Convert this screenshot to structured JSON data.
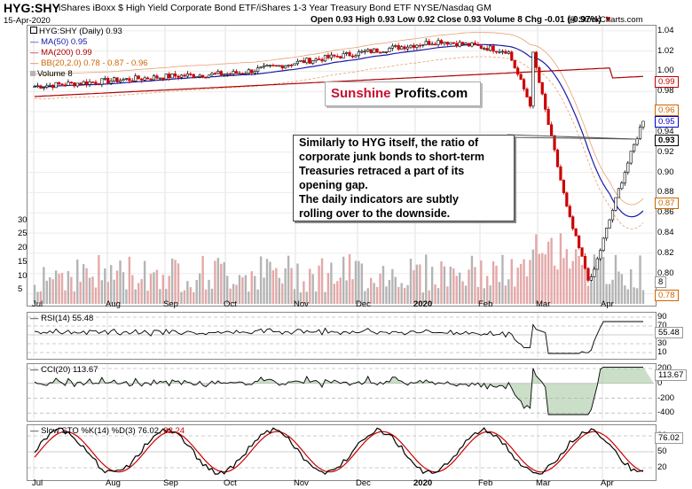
{
  "header": {
    "symbol": "HYG:SHY",
    "name": "iShares iBoxx $ High Yield Corporate Bond ETF/iShares 1-3 Year Treasury Bond ETF  NYSE/Nasdaq GM",
    "date": "15-Apr-2020",
    "copyright": "@ StockCharts.com",
    "ohlc": "Open 0.93  High 0.93  Low 0.92  Close 0.93  Volume 8  Chg -0.01 (-0.97%)",
    "chg_arrow": "▼"
  },
  "logo": {
    "part1": "Sunshine",
    "part2": "Profits.com"
  },
  "annotation": {
    "lines": [
      "Similarly to HYG itself, the ratio of",
      "corporate junk bonds to short-term",
      "Treasuries retraced a part of its",
      "opening gap.",
      "The daily indicators are subtly",
      "rolling over to the downside."
    ]
  },
  "price_legend": {
    "series": "HYG:SHY (Daily) 0.93",
    "ma50": "MA(50) 0.95",
    "ma200": "MA(200) 0.99",
    "bb": "BB(20,2.0) 0.78 - 0.87 - 0.96",
    "volume": "Volume 8"
  },
  "price_axis": {
    "ticks": [
      "1.04",
      "1.02",
      "1.00",
      "0.98",
      "0.96",
      "0.94",
      "0.92",
      "0.90",
      "0.88",
      "0.86",
      "0.84",
      "0.82",
      "0.80",
      "0.78"
    ],
    "tags": [
      {
        "text": "0.99",
        "value": 0.99,
        "color": "#c00000"
      },
      {
        "text": "0.96",
        "value": 0.962,
        "color": "#cc6600"
      },
      {
        "text": "0.95",
        "value": 0.95,
        "color": "#0000cc"
      },
      {
        "text": "0.93",
        "value": 0.932,
        "color": "#000000"
      },
      {
        "text": "0.87",
        "value": 0.87,
        "color": "#cc6600"
      },
      {
        "text": "0.78",
        "value": 0.779,
        "color": "#cc6600"
      }
    ],
    "min": 0.77,
    "max": 1.045
  },
  "volume_axis": {
    "ticks": [
      "30",
      "25",
      "20",
      "15",
      "10",
      "5"
    ],
    "tag": "8",
    "max": 34
  },
  "months": [
    "Jul",
    "Aug",
    "Sep",
    "Oct",
    "Nov",
    "Dec",
    "2020",
    "Feb",
    "Mar",
    "Apr"
  ],
  "rsi": {
    "legend": "RSI(14) 55.48",
    "ticks": [
      "90",
      "70",
      "50",
      "30",
      "10"
    ],
    "tag": "55.48",
    "current": 55.48
  },
  "cci": {
    "legend": "CCI(20) 113.67",
    "ticks": [
      "200",
      "0",
      "-200",
      "-400"
    ],
    "tag": "113.67",
    "current": 113.67
  },
  "sto": {
    "legend_k": "Slow STO %K(14) %D(3) 76.02,",
    "legend_d": "82.24",
    "ticks": [
      "80",
      "50",
      "20"
    ],
    "tag": "76.02",
    "k": 76.02,
    "d": 82.24
  },
  "chart_data": {
    "type": "line",
    "title": "HYG:SHY (Daily)",
    "x_range": [
      "2019-07",
      "2020-04-15"
    ],
    "ylim": [
      0.77,
      1.045
    ],
    "series": [
      {
        "name": "HYG:SHY",
        "close_by_month": [
          0.985,
          0.99,
          0.995,
          0.998,
          1.01,
          1.02,
          1.03,
          1.02,
          0.86,
          0.93
        ]
      },
      {
        "name": "MA(50)",
        "last": 0.95
      },
      {
        "name": "MA(200)",
        "last": 0.99
      },
      {
        "name": "BB(20,2.0)",
        "lower": 0.78,
        "middle": 0.87,
        "upper": 0.96
      }
    ],
    "categories": [
      "Jul",
      "Aug",
      "Sep",
      "Oct",
      "Nov",
      "Dec",
      "2020",
      "Feb",
      "Mar",
      "Apr"
    ],
    "last_ohlc": {
      "open": 0.93,
      "high": 0.93,
      "low": 0.92,
      "close": 0.93,
      "volume": 8
    },
    "indicators": {
      "RSI14": 55.48,
      "CCI20": 113.67,
      "STO_K": 76.02,
      "STO_D": 82.24
    },
    "colors": {
      "up": "#000000",
      "down": "#cc0000",
      "ma50": "#1a1aa6",
      "ma200": "#b00000",
      "bb": "#e8a070",
      "vol_up": "#b4b4b4",
      "vol_down": "#e4a8a8"
    }
  }
}
